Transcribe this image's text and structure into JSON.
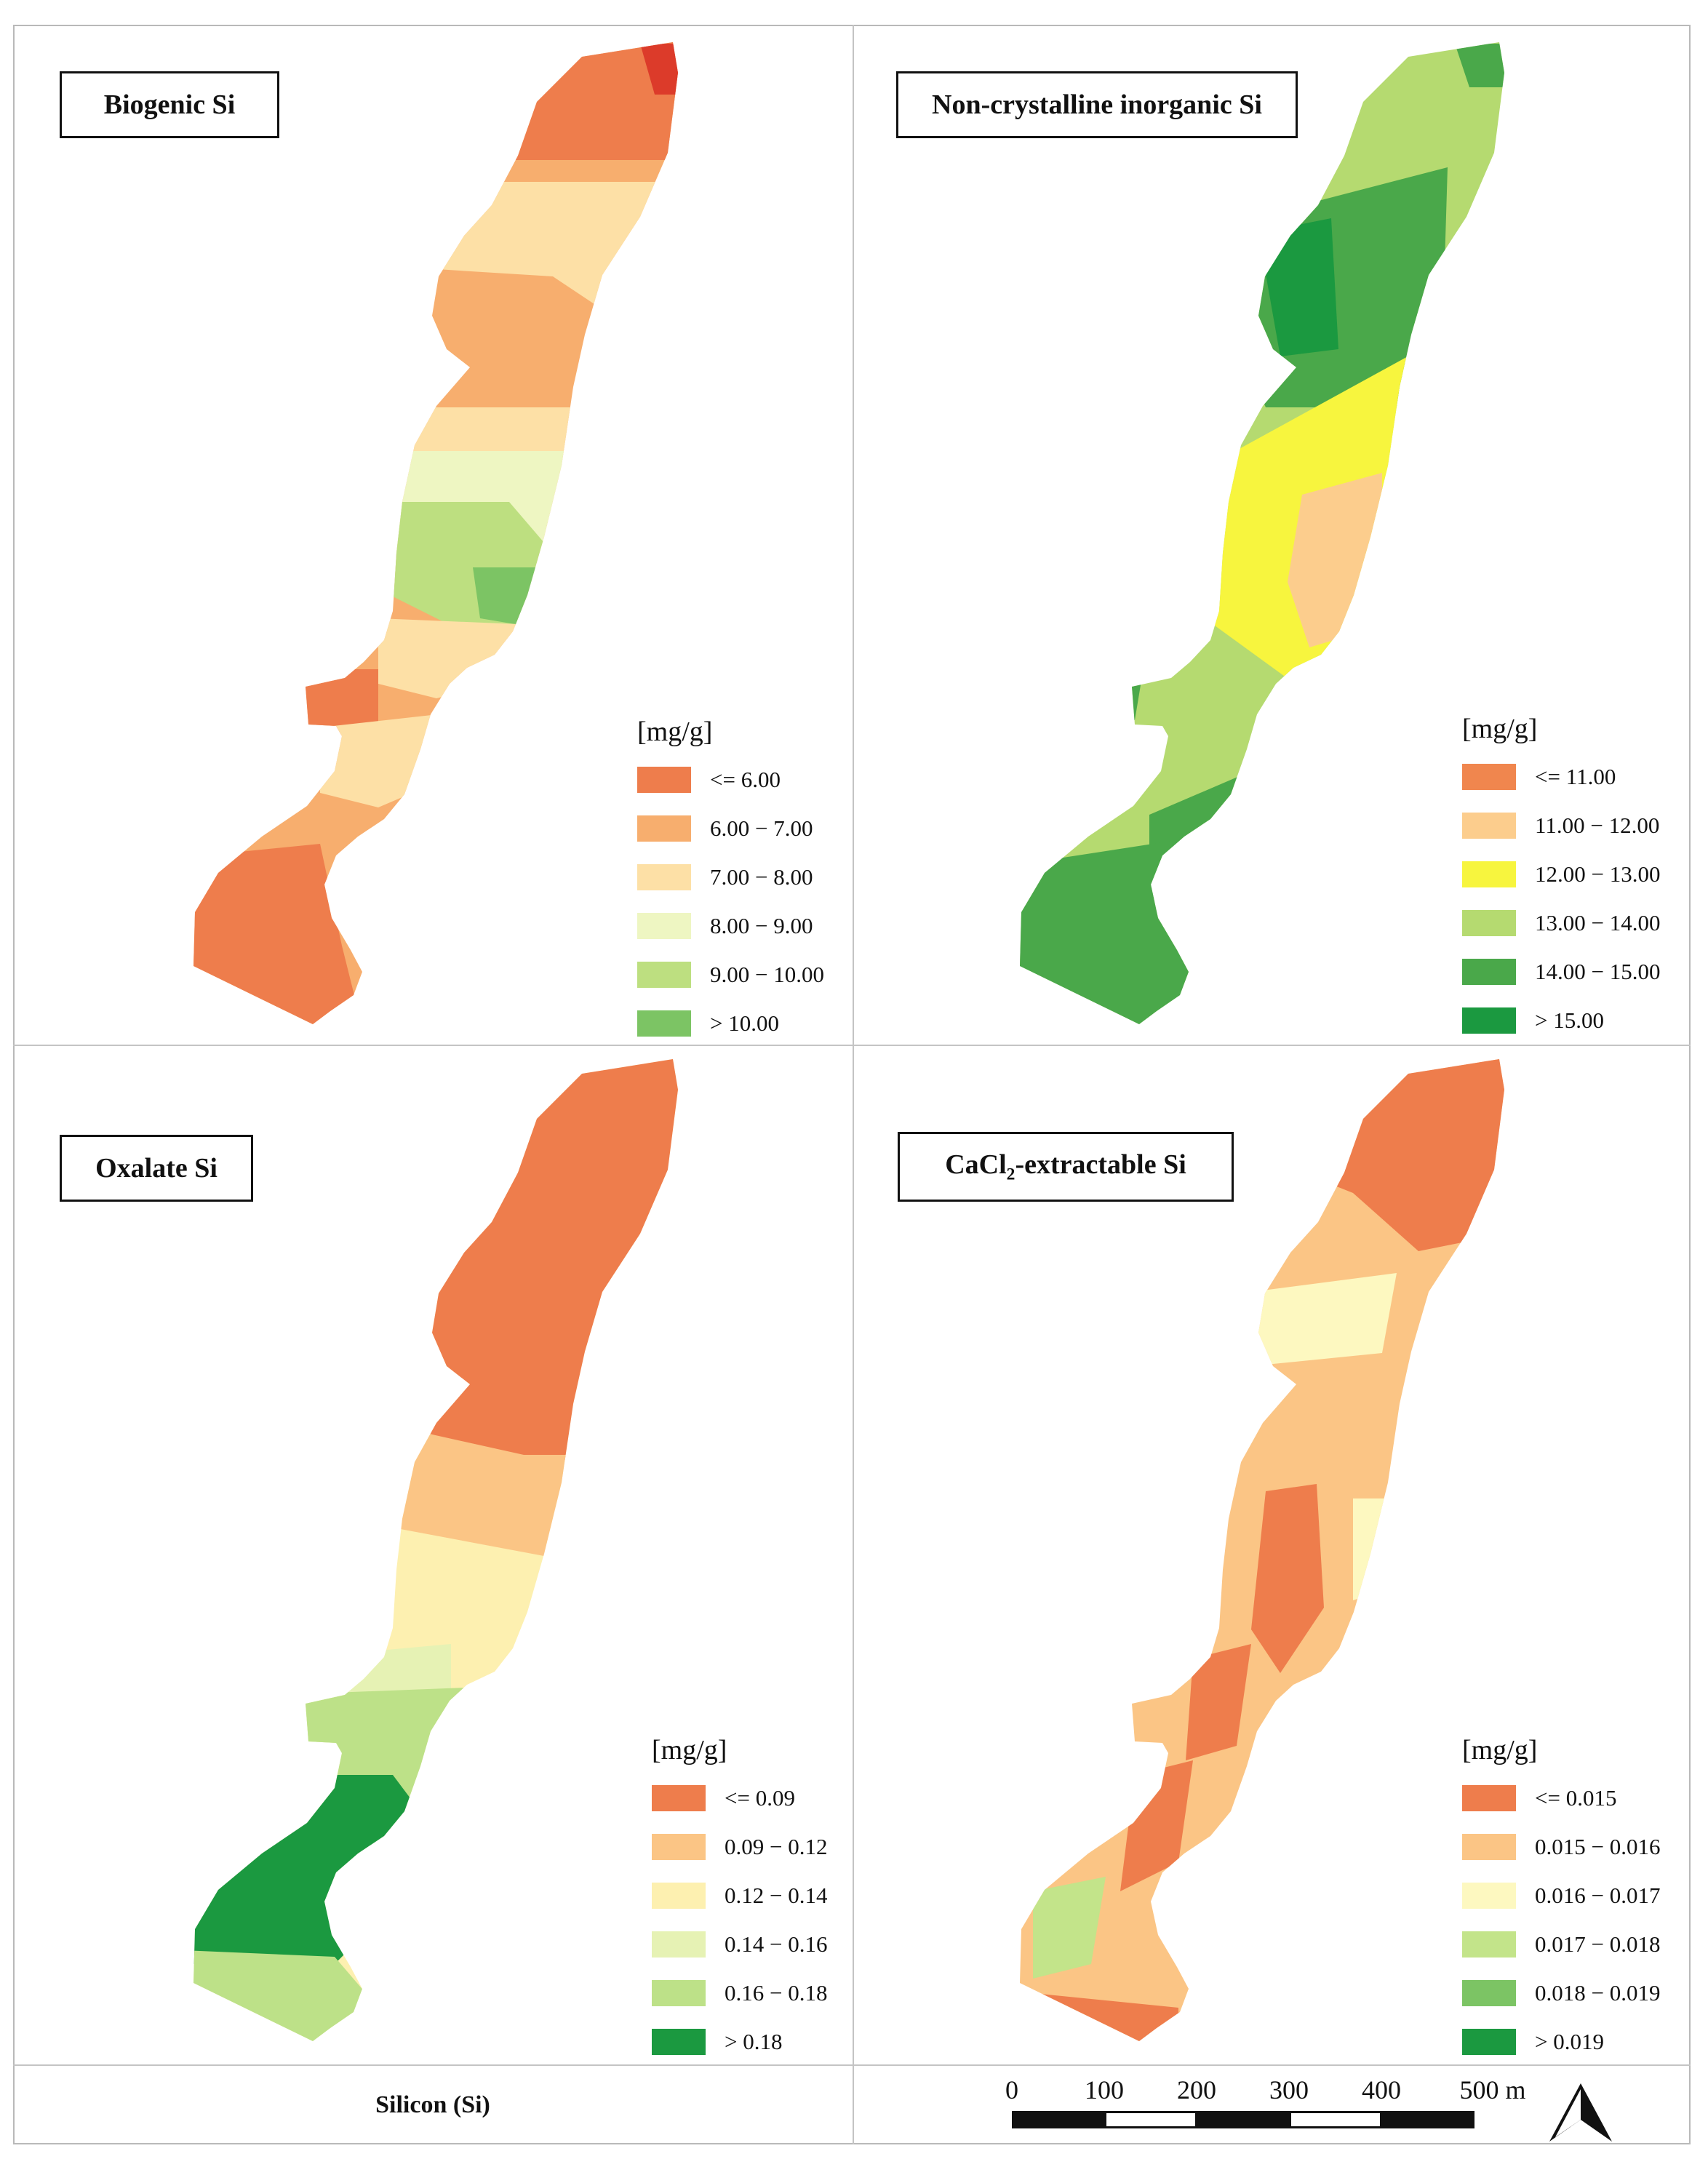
{
  "panels": {
    "biogenic": {
      "title": "Biogenic Si",
      "unit": "[mg/g]",
      "legend": [
        {
          "label": "<= 6.00",
          "color": "#ee7d4c"
        },
        {
          "label": "6.00 − 7.00",
          "color": "#f7ae6e"
        },
        {
          "label": "7.00 − 8.00",
          "color": "#fde0a6"
        },
        {
          "label": "8.00 − 9.00",
          "color": "#eef6c2"
        },
        {
          "label": "9.00 − 10.00",
          "color": "#bddf80"
        },
        {
          "label": "> 10.00",
          "color": "#7cc464"
        }
      ]
    },
    "noncrystalline": {
      "title": "Non-crystalline inorganic Si",
      "unit": "[mg/g]",
      "legend": [
        {
          "label": "<= 11.00",
          "color": "#f0864e"
        },
        {
          "label": "11.00 − 12.00",
          "color": "#fccd8d"
        },
        {
          "label": "12.00 − 13.00",
          "color": "#f7f53e"
        },
        {
          "label": "13.00 − 14.00",
          "color": "#b5da70"
        },
        {
          "label": "14.00 − 15.00",
          "color": "#4aa84a"
        },
        {
          "label": "> 15.00",
          "color": "#1b9940"
        }
      ]
    },
    "oxalate": {
      "title": "Oxalate Si",
      "unit": "[mg/g]",
      "legend": [
        {
          "label": "<= 0.09",
          "color": "#ee7d4c"
        },
        {
          "label": "0.09 − 0.12",
          "color": "#fbc585"
        },
        {
          "label": "0.12 − 0.14",
          "color": "#fdf0b0"
        },
        {
          "label": "0.14 − 0.16",
          "color": "#e6f2b4"
        },
        {
          "label": "0.16 − 0.18",
          "color": "#bde188"
        },
        {
          "label": "> 0.18",
          "color": "#1b9940"
        }
      ]
    },
    "cacl2": {
      "title_pre": "CaCl",
      "title_sub": "2",
      "title_post": "-extractable Si",
      "unit": "[mg/g]",
      "legend": [
        {
          "label": "<= 0.015",
          "color": "#ee7d4c"
        },
        {
          "label": "0.015 − 0.016",
          "color": "#fbc585"
        },
        {
          "label": "0.016 − 0.017",
          "color": "#fdf8c0"
        },
        {
          "label": "0.017 − 0.018",
          "color": "#c3e48a"
        },
        {
          "label": "0.018 − 0.019",
          "color": "#7cc464"
        },
        {
          "label": "> 0.019",
          "color": "#1b9940"
        }
      ]
    }
  },
  "footer": {
    "caption": "Silicon (Si)",
    "scale_labels": [
      "0",
      "100",
      "200",
      "300",
      "400",
      "500 m"
    ]
  },
  "icons": {
    "north_arrow": "north-arrow-icon"
  }
}
